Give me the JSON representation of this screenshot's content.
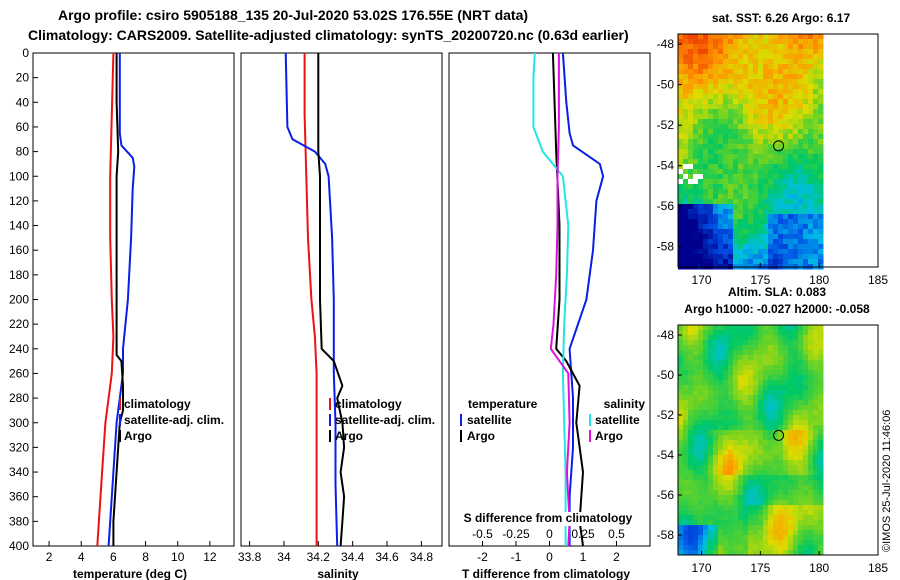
{
  "title_line1": "Argo profile: csiro 5905188_135 20-Jul-2020 53.02S 176.55E (NRT data)",
  "title_line2": "Climatology: CARS2009. Satellite-adjusted climatology: synTS_20200720.nc (0.63d earlier)",
  "timestamp": "©IMOS 25-Jul-2020 11:46:06",
  "colors": {
    "red": "#ee1111",
    "blue": "#0a1ee6",
    "black": "#000000",
    "cyan": "#22e6e6",
    "magenta": "#dd11dd"
  },
  "chart_data": [
    {
      "type": "line",
      "id": "temperature",
      "xlabel": "temperature (deg C)",
      "xlim": [
        1,
        13.5
      ],
      "xticks": [
        2,
        4,
        6,
        8,
        10,
        12
      ],
      "ylim": [
        0,
        400
      ],
      "yticks": [
        0,
        20,
        40,
        60,
        80,
        100,
        120,
        140,
        160,
        180,
        200,
        220,
        240,
        260,
        280,
        300,
        320,
        340,
        360,
        380,
        400
      ],
      "legend": [
        "climatology",
        "satellite-adj. clim.",
        "Argo"
      ],
      "series": [
        {
          "name": "climatology",
          "color": "#ee1111",
          "depth": [
            0,
            50,
            100,
            150,
            200,
            230,
            260,
            300,
            340,
            380,
            400
          ],
          "values": [
            6.0,
            5.9,
            5.8,
            5.8,
            5.9,
            6.0,
            5.9,
            5.5,
            5.3,
            5.1,
            5.0
          ]
        },
        {
          "name": "satellite-adj. clim.",
          "color": "#0a1ee6",
          "depth": [
            0,
            40,
            65,
            75,
            85,
            92,
            110,
            150,
            200,
            240,
            260,
            280,
            300,
            340,
            380,
            400
          ],
          "values": [
            6.4,
            6.4,
            6.4,
            6.5,
            7.2,
            7.3,
            7.2,
            7.1,
            6.9,
            6.6,
            6.6,
            6.4,
            6.2,
            6.0,
            5.8,
            5.7
          ]
        },
        {
          "name": "Argo",
          "color": "#000000",
          "depth": [
            0,
            40,
            80,
            100,
            140,
            180,
            220,
            245,
            250,
            270,
            290,
            300,
            320,
            340,
            360,
            380,
            400
          ],
          "values": [
            6.2,
            6.2,
            6.3,
            6.2,
            6.2,
            6.2,
            6.2,
            6.2,
            6.5,
            6.6,
            6.6,
            6.4,
            6.3,
            6.2,
            6.1,
            6.0,
            6.0
          ]
        }
      ]
    },
    {
      "type": "line",
      "id": "salinity",
      "xlabel": "salinity",
      "xlim": [
        33.75,
        34.92
      ],
      "xticks": [
        33.8,
        34,
        34.2,
        34.4,
        34.6,
        34.8
      ],
      "ylim": [
        0,
        400
      ],
      "legend": [
        "climatology",
        "satellite-adj. clim.",
        "Argo"
      ],
      "series": [
        {
          "name": "climatology",
          "color": "#ee1111",
          "depth": [
            0,
            50,
            100,
            150,
            200,
            230,
            260,
            300,
            350,
            400
          ],
          "values": [
            34.12,
            34.12,
            34.13,
            34.14,
            34.16,
            34.18,
            34.19,
            34.19,
            34.19,
            34.19
          ]
        },
        {
          "name": "satellite-adj. clim.",
          "color": "#0a1ee6",
          "depth": [
            0,
            60,
            70,
            80,
            90,
            100,
            150,
            200,
            240,
            260,
            300,
            350,
            400
          ],
          "values": [
            34.01,
            34.02,
            34.05,
            34.18,
            34.24,
            34.26,
            34.28,
            34.29,
            34.29,
            34.29,
            34.3,
            34.3,
            34.31
          ]
        },
        {
          "name": "Argo",
          "color": "#000000",
          "depth": [
            0,
            80,
            100,
            150,
            200,
            240,
            250,
            270,
            280,
            300,
            320,
            340,
            360,
            380,
            400
          ],
          "values": [
            34.2,
            34.2,
            34.21,
            34.21,
            34.21,
            34.22,
            34.29,
            34.34,
            34.31,
            34.34,
            34.35,
            34.33,
            34.35,
            34.34,
            34.33
          ]
        }
      ]
    },
    {
      "type": "line",
      "id": "differences",
      "xlabel": "T difference from climatology",
      "xlabel_top": "S difference from climatology",
      "xlim": [
        -3,
        3
      ],
      "xticks": [
        -2,
        -1,
        0,
        1,
        2
      ],
      "xticks_top": [
        -0.5,
        -0.25,
        0,
        0.25,
        0.5
      ],
      "xticks_top_labels": [
        "-0.5",
        "-0.25",
        "0",
        "0.25",
        "0.5"
      ],
      "ylim": [
        0,
        400
      ],
      "legend_temperature": {
        "heading": "temperature",
        "items": [
          "satellite",
          "Argo"
        ]
      },
      "legend_salinity": {
        "heading": "salinity",
        "items": [
          "satellite",
          "Argo"
        ]
      },
      "series": [
        {
          "name": "T satellite",
          "color": "#0a1ee6",
          "depth": [
            0,
            40,
            65,
            75,
            90,
            100,
            120,
            160,
            200,
            240,
            280,
            320,
            360,
            400
          ],
          "values": [
            0.4,
            0.5,
            0.6,
            0.7,
            1.5,
            1.6,
            1.4,
            1.3,
            1.1,
            0.6,
            0.7,
            0.7,
            0.6,
            0.6
          ]
        },
        {
          "name": "T Argo",
          "color": "#000000",
          "depth": [
            0,
            80,
            140,
            200,
            240,
            250,
            270,
            300,
            340,
            380,
            400
          ],
          "values": [
            0.1,
            0.2,
            0.3,
            0.3,
            0.2,
            0.5,
            0.9,
            0.8,
            1.0,
            0.9,
            1.0
          ]
        },
        {
          "name": "S satellite",
          "color": "#22e6e6",
          "depth": [
            0,
            20,
            60,
            80,
            100,
            140,
            180,
            220,
            260,
            300,
            340,
            400
          ],
          "values": [
            -0.11,
            -0.12,
            -0.12,
            -0.05,
            0.1,
            0.14,
            0.13,
            0.11,
            0.1,
            0.11,
            0.12,
            0.12
          ]
        },
        {
          "name": "S Argo",
          "color": "#dd11dd",
          "depth": [
            0,
            60,
            100,
            140,
            180,
            220,
            240,
            260,
            300,
            340,
            380,
            400
          ],
          "values": [
            0.07,
            0.07,
            0.06,
            0.06,
            0.05,
            0.03,
            0.01,
            0.14,
            0.15,
            0.13,
            0.15,
            0.14
          ]
        }
      ]
    },
    {
      "type": "heatmap",
      "id": "sst-map",
      "title": "sat. SST: 6.26 Argo: 6.17",
      "xlim": [
        168,
        185
      ],
      "ylim": [
        -59,
        -47.5
      ],
      "xticks": [
        170,
        175,
        180,
        185
      ],
      "yticks": [
        -48,
        -50,
        -52,
        -54,
        -56,
        -58
      ],
      "marker": {
        "lon": 176.55,
        "lat": -53.02
      }
    },
    {
      "type": "heatmap",
      "id": "sla-map",
      "title_line1": "Altim. SLA: 0.083",
      "title_line2": "Argo h1000: -0.027 h2000: -0.058",
      "xlim": [
        168,
        185
      ],
      "ylim": [
        -59,
        -47.5
      ],
      "xticks": [
        170,
        175,
        180,
        185
      ],
      "yticks": [
        -48,
        -50,
        -52,
        -54,
        -56,
        -58
      ],
      "marker": {
        "lon": 176.55,
        "lat": -53.02
      }
    }
  ]
}
